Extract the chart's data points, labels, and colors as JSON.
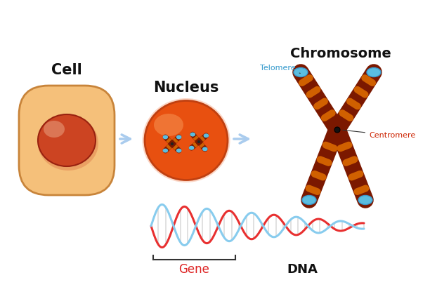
{
  "bg_color": "#ffffff",
  "cell_label": "Cell",
  "nucleus_label": "Nucleus",
  "chromosome_label": "Chromosome",
  "dna_label": "DNA",
  "gene_label": "Gene",
  "telomere_label": "Telomere",
  "centromere_label": "Centromere",
  "cell_outer_color": "#F5C07A",
  "cell_outer_edge": "#C8843A",
  "cell_inner_color": "#CC4422",
  "cell_inner_edge": "#992210",
  "cell_highlight": "#E8A080",
  "nucleus_outer_color": "#E85010",
  "nucleus_outer_edge": "#C04010",
  "nucleus_highlight": "#F08040",
  "chr_body_color": "#7B1800",
  "chr_stripe_color": "#D06000",
  "chr_telomere_color": "#5BBDE0",
  "chr_telomere_edge": "#3A99CC",
  "chr_centromere_dot": "#111111",
  "dna_strand1_color": "#E83030",
  "dna_strand2_color": "#88CCEE",
  "arrow_color": "#AACCEE",
  "label_color_black": "#111111",
  "label_color_red": "#DD2222",
  "label_color_blue": "#3399CC",
  "label_color_dark_red": "#CC2200",
  "label_color_telomere": "#3399CC"
}
